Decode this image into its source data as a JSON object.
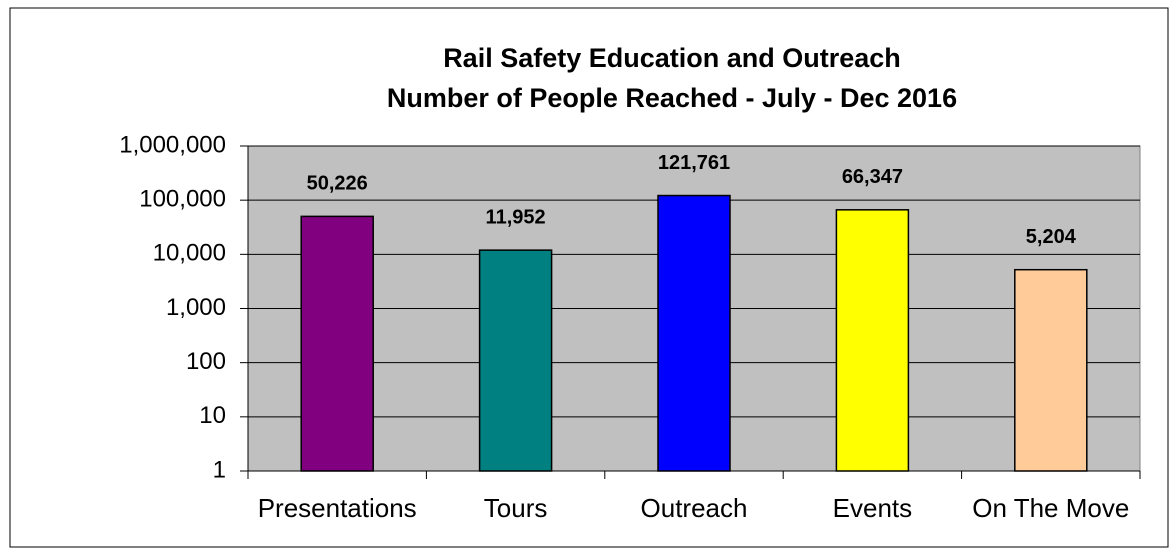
{
  "chart_data": {
    "type": "bar",
    "title": "Rail Safety Education and Outreach",
    "subtitle": "Number of People Reached - July - Dec 2016",
    "categories": [
      "Presentations",
      "Tours",
      "Outreach",
      "Events",
      "On The Move"
    ],
    "values": [
      50226,
      11952,
      121761,
      66347,
      5204
    ],
    "value_labels": [
      "50,226",
      "11,952",
      "121,761",
      "66,347",
      "5,204"
    ],
    "colors": [
      "#800080",
      "#008080",
      "#0000ff",
      "#ffff00",
      "#ffcc99"
    ],
    "log_scale": true,
    "ylim": [
      1,
      1000000
    ],
    "yticks": [
      1,
      10,
      100,
      {
        "value": 1000,
        "label": "1,000"
      },
      {
        "value": 10000,
        "label": "10,000"
      },
      {
        "value": 100000,
        "label": "100,000"
      },
      {
        "value": 1000000,
        "label": "1,000,000"
      }
    ],
    "grid": true
  }
}
